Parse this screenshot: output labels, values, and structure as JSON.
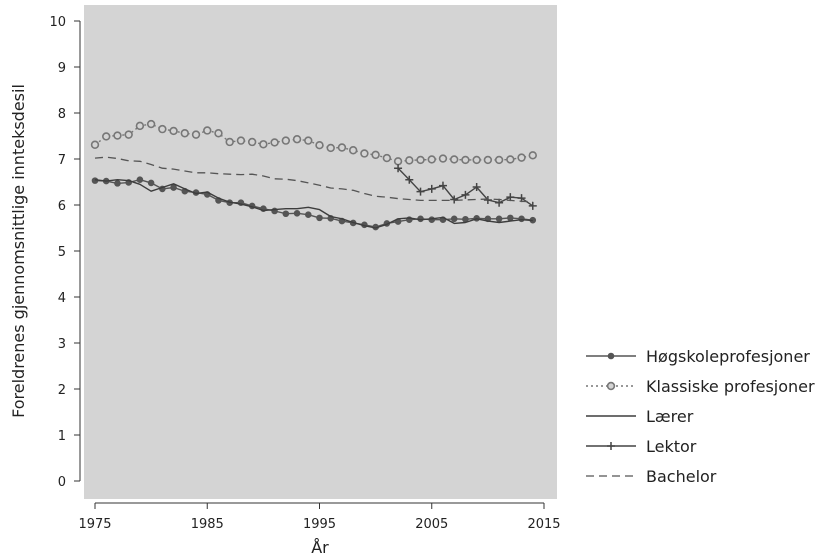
{
  "chart_data": {
    "type": "line",
    "xlabel": "År",
    "ylabel": "Foreldrenes gjennomsnittlige innteksdesil",
    "xlim": [
      1974,
      2016
    ],
    "ylim": [
      0,
      10
    ],
    "x_ticks": [
      1975,
      1985,
      1995,
      2005,
      2015
    ],
    "y_ticks": [
      0,
      1,
      2,
      3,
      4,
      5,
      6,
      7,
      8,
      9,
      10
    ],
    "grid": false,
    "legend_position": "right",
    "plot_background": "#d4d4d4",
    "series": [
      {
        "name": "Høgskoleprofesjoner",
        "style": "solid-dot",
        "color": "#555555",
        "x": [
          1975,
          1976,
          1977,
          1978,
          1979,
          1980,
          1981,
          1982,
          1983,
          1984,
          1985,
          1986,
          1987,
          1988,
          1989,
          1990,
          1991,
          1992,
          1993,
          1994,
          1995,
          1996,
          1997,
          1998,
          1999,
          2000,
          2001,
          2002,
          2003,
          2004,
          2005,
          2006,
          2007,
          2008,
          2009,
          2010,
          2011,
          2012,
          2013,
          2014
        ],
        "values": [
          6.53,
          6.52,
          6.47,
          6.49,
          6.55,
          6.48,
          6.35,
          6.38,
          6.3,
          6.27,
          6.23,
          6.1,
          6.05,
          6.05,
          5.98,
          5.92,
          5.87,
          5.81,
          5.82,
          5.79,
          5.72,
          5.71,
          5.65,
          5.61,
          5.57,
          5.52,
          5.6,
          5.64,
          5.68,
          5.7,
          5.68,
          5.68,
          5.7,
          5.69,
          5.71,
          5.7,
          5.7,
          5.72,
          5.7,
          5.67
        ]
      },
      {
        "name": "Klassiske profesjoner",
        "style": "dotted-circle",
        "color": "#777777",
        "x": [
          1975,
          1976,
          1977,
          1978,
          1979,
          1980,
          1981,
          1982,
          1983,
          1984,
          1985,
          1986,
          1987,
          1988,
          1989,
          1990,
          1991,
          1992,
          1993,
          1994,
          1995,
          1996,
          1997,
          1998,
          1999,
          2000,
          2001,
          2002,
          2003,
          2004,
          2005,
          2006,
          2007,
          2008,
          2009,
          2010,
          2011,
          2012,
          2013,
          2014
        ],
        "values": [
          7.31,
          7.49,
          7.51,
          7.53,
          7.72,
          7.76,
          7.65,
          7.61,
          7.56,
          7.53,
          7.62,
          7.56,
          7.37,
          7.4,
          7.37,
          7.32,
          7.36,
          7.4,
          7.43,
          7.4,
          7.3,
          7.24,
          7.25,
          7.19,
          7.12,
          7.09,
          7.02,
          6.95,
          6.97,
          6.98,
          6.99,
          7.01,
          6.99,
          6.98,
          6.98,
          6.98,
          6.98,
          6.99,
          7.03,
          7.08
        ]
      },
      {
        "name": "Lærer",
        "style": "solid",
        "color": "#3d3d3d",
        "x": [
          1975,
          1976,
          1977,
          1978,
          1979,
          1980,
          1981,
          1982,
          1983,
          1984,
          1985,
          1986,
          1987,
          1988,
          1989,
          1990,
          1991,
          1992,
          1993,
          1994,
          1995,
          1996,
          1997,
          1998,
          1999,
          2000,
          2001,
          2002,
          2003,
          2004,
          2005,
          2006,
          2007,
          2008,
          2009,
          2010,
          2011,
          2012,
          2013,
          2014
        ],
        "values": [
          6.55,
          6.52,
          6.55,
          6.53,
          6.45,
          6.3,
          6.38,
          6.46,
          6.35,
          6.25,
          6.28,
          6.15,
          6.06,
          6.02,
          5.96,
          5.88,
          5.9,
          5.92,
          5.92,
          5.95,
          5.9,
          5.75,
          5.7,
          5.62,
          5.55,
          5.5,
          5.58,
          5.7,
          5.72,
          5.68,
          5.7,
          5.73,
          5.6,
          5.62,
          5.7,
          5.65,
          5.62,
          5.65,
          5.68,
          5.66
        ]
      },
      {
        "name": "Lektor",
        "style": "solid-plus",
        "color": "#444444",
        "x": [
          2002,
          2003,
          2004,
          2005,
          2006,
          2007,
          2008,
          2009,
          2010,
          2011,
          2012,
          2013,
          2014
        ],
        "values": [
          6.8,
          6.55,
          6.29,
          6.35,
          6.42,
          6.12,
          6.22,
          6.39,
          6.11,
          6.05,
          6.17,
          6.15,
          5.98
        ]
      },
      {
        "name": "Bachelor",
        "style": "dashed",
        "color": "#555555",
        "x": [
          1975,
          1976,
          1977,
          1978,
          1979,
          1980,
          1981,
          1982,
          1983,
          1984,
          1985,
          1986,
          1987,
          1988,
          1989,
          1990,
          1991,
          1992,
          1993,
          1994,
          1995,
          1996,
          1997,
          1998,
          1999,
          2000,
          2001,
          2002,
          2003,
          2004,
          2005,
          2006,
          2007,
          2008,
          2009,
          2010,
          2011,
          2012,
          2013,
          2014
        ],
        "values": [
          7.02,
          7.04,
          7.01,
          6.96,
          6.95,
          6.88,
          6.8,
          6.78,
          6.74,
          6.7,
          6.7,
          6.68,
          6.67,
          6.66,
          6.67,
          6.63,
          6.57,
          6.56,
          6.53,
          6.48,
          6.43,
          6.37,
          6.35,
          6.32,
          6.25,
          6.19,
          6.17,
          6.14,
          6.12,
          6.1,
          6.1,
          6.1,
          6.1,
          6.11,
          6.12,
          6.13,
          6.12,
          6.1,
          6.08,
          6.07
        ]
      }
    ]
  }
}
